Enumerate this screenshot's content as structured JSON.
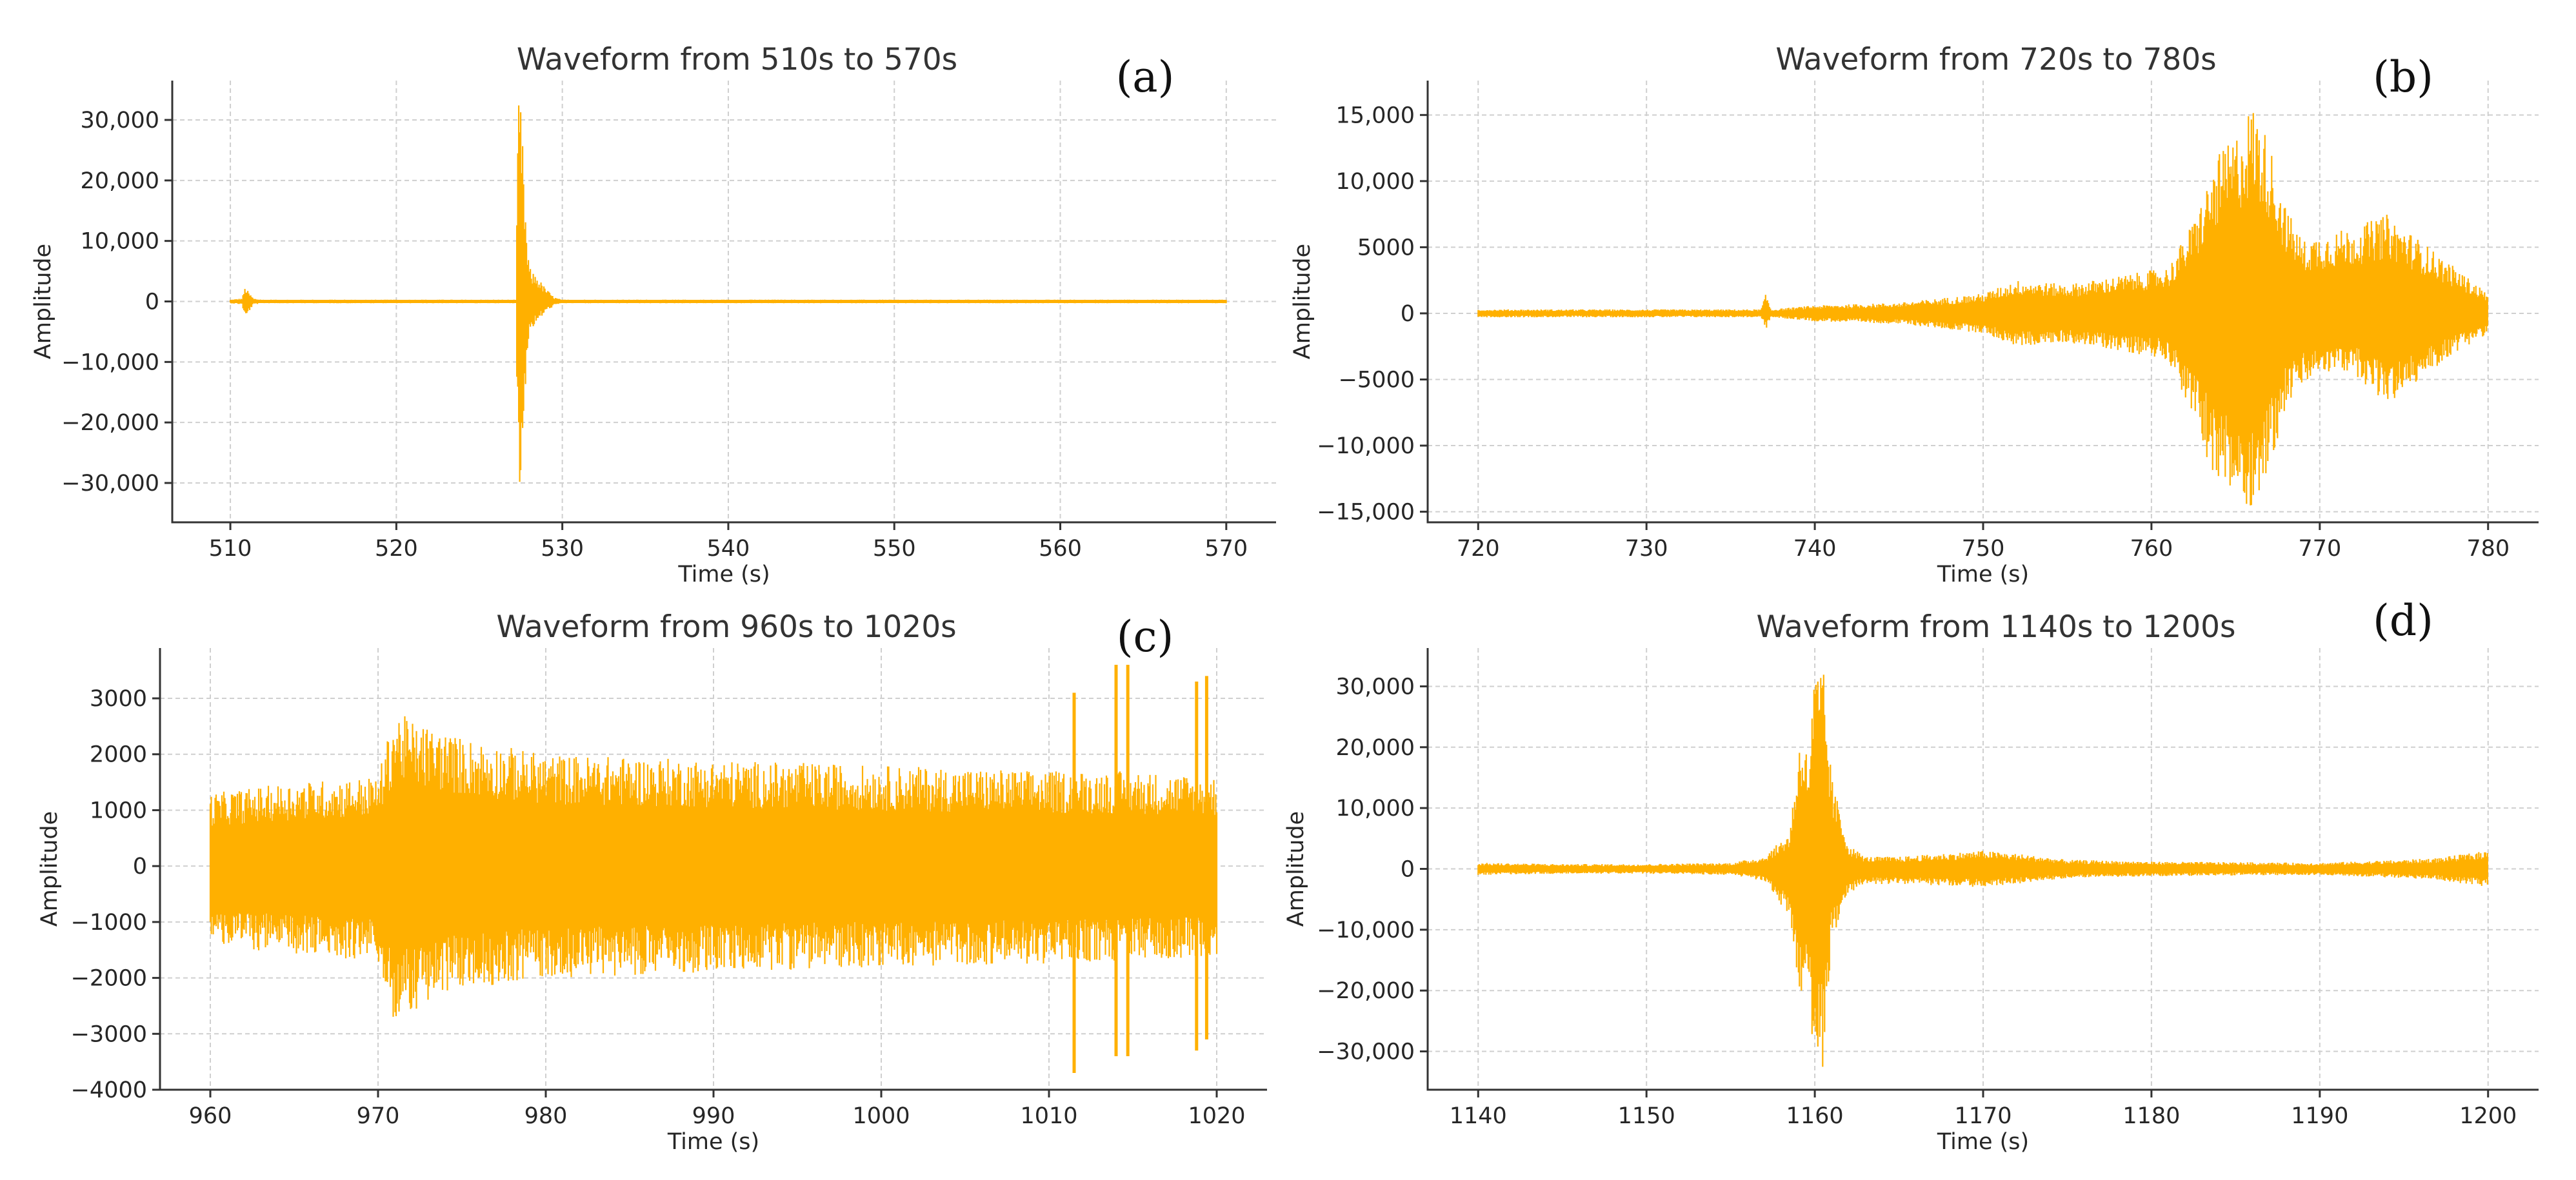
{
  "chart_data": [
    {
      "type": "line",
      "panel_label": "(a)",
      "title": "Waveform from 510s to 570s",
      "xlabel": "Time (s)",
      "ylabel": "Amplitude",
      "xlim": [
        506.5,
        573
      ],
      "ylim": [
        -36500,
        36500
      ],
      "xticks": [
        510,
        520,
        530,
        540,
        550,
        560,
        570
      ],
      "xtick_labels": [
        "510",
        "520",
        "530",
        "540",
        "550",
        "560",
        "570"
      ],
      "yticks": [
        -30000,
        -20000,
        -10000,
        0,
        10000,
        20000,
        30000
      ],
      "ytick_labels": [
        "−30,000",
        "−20,000",
        "−10,000",
        "0",
        "10,000",
        "20,000",
        "30,000"
      ],
      "color": "#FFB000",
      "envelope": {
        "t": [
          510,
          510.7,
          510.9,
          511.1,
          511.4,
          512,
          527.2,
          527.35,
          527.5,
          527.7,
          527.9,
          528.1,
          528.4,
          528.9,
          529.5,
          530,
          570
        ],
        "upper": [
          300,
          500,
          2500,
          1500,
          500,
          300,
          300,
          33000,
          33000,
          20000,
          8000,
          5000,
          4500,
          2500,
          700,
          300,
          300
        ],
        "lower": [
          -300,
          -500,
          -3000,
          -1800,
          -500,
          -300,
          -300,
          -33000,
          -33000,
          -18000,
          -8000,
          -4500,
          -4000,
          -2000,
          -700,
          -300,
          -300
        ]
      }
    },
    {
      "type": "line",
      "panel_label": "(b)",
      "title": "Waveform from 720s to 780s",
      "xlabel": "Time (s)",
      "ylabel": "Amplitude",
      "xlim": [
        717,
        783
      ],
      "ylim": [
        -15800,
        17600
      ],
      "xticks": [
        720,
        730,
        740,
        750,
        760,
        770,
        780
      ],
      "xtick_labels": [
        "720",
        "730",
        "740",
        "750",
        "760",
        "770",
        "780"
      ],
      "yticks": [
        -15000,
        -10000,
        -5000,
        0,
        5000,
        10000,
        15000
      ],
      "ytick_labels": [
        "−15,000",
        "−10,000",
        "−5000",
        "0",
        "5000",
        "10,000",
        "15,000"
      ],
      "color": "#FFB000",
      "envelope": {
        "t": [
          720,
          730,
          736.8,
          737.1,
          737.4,
          740,
          745,
          750,
          752,
          755,
          758,
          761,
          762.5,
          764,
          765,
          766,
          767,
          768,
          769,
          770,
          772,
          774,
          776,
          778,
          780
        ],
        "upper": [
          300,
          300,
          300,
          1500,
          300,
          600,
          800,
          1500,
          2500,
          2200,
          2800,
          3500,
          7000,
          12000,
          13500,
          16000,
          13000,
          8000,
          5500,
          6000,
          6500,
          7500,
          5500,
          3500,
          1500
        ],
        "lower": [
          -300,
          -300,
          -300,
          -1200,
          -300,
          -600,
          -800,
          -1500,
          -2500,
          -2200,
          -2800,
          -3500,
          -8000,
          -13500,
          -14000,
          -14800,
          -12000,
          -7000,
          -5500,
          -4500,
          -4500,
          -7000,
          -5000,
          -3000,
          -1500
        ]
      }
    },
    {
      "type": "line",
      "panel_label": "(c)",
      "title": "Waveform from 960s to 1020s",
      "xlabel": "Time (s)",
      "ylabel": "Amplitude",
      "xlim": [
        957,
        1023
      ],
      "ylim": [
        -4000,
        3900
      ],
      "xticks": [
        960,
        970,
        980,
        990,
        1000,
        1010,
        1020
      ],
      "xtick_labels": [
        "960",
        "970",
        "980",
        "990",
        "1000",
        "1010",
        "1020"
      ],
      "yticks": [
        -4000,
        -3000,
        -2000,
        -1000,
        0,
        1000,
        2000,
        3000
      ],
      "ytick_labels": [
        "−4000",
        "−3000",
        "−2000",
        "−1000",
        "0",
        "1000",
        "2000",
        "3000"
      ],
      "color": "#FFB000",
      "envelope": {
        "t": [
          960,
          965,
          970,
          971,
          972,
          975,
          980,
          990,
          1000,
          1010,
          1015,
          1020
        ],
        "upper": [
          1300,
          1500,
          1600,
          2800,
          2600,
          2300,
          2000,
          1900,
          1800,
          1700,
          1700,
          1600
        ],
        "lower": [
          -1400,
          -1600,
          -1700,
          -2900,
          -2600,
          -2200,
          -2000,
          -1900,
          -1800,
          -1750,
          -1700,
          -1600
        ]
      },
      "spikes": [
        {
          "t": 1011.5,
          "min": -3700,
          "max": 3100
        },
        {
          "t": 1014,
          "min": -3400,
          "max": 3600
        },
        {
          "t": 1014.7,
          "min": -3400,
          "max": 3600
        },
        {
          "t": 1018.8,
          "min": -3300,
          "max": 3300
        },
        {
          "t": 1019.4,
          "min": -3100,
          "max": 3400
        }
      ]
    },
    {
      "type": "line",
      "panel_label": "(d)",
      "title": "Waveform from 1140s to 1200s",
      "xlabel": "Time (s)",
      "ylabel": "Amplitude",
      "xlim": [
        1137,
        1203
      ],
      "ylim": [
        -36300,
        36300
      ],
      "xticks": [
        1140,
        1150,
        1160,
        1170,
        1180,
        1190,
        1200
      ],
      "xtick_labels": [
        "1140",
        "1150",
        "1160",
        "1170",
        "1180",
        "1190",
        "1200"
      ],
      "yticks": [
        -30000,
        -20000,
        -10000,
        0,
        10000,
        20000,
        30000
      ],
      "ytick_labels": [
        "−30,000",
        "−20,000",
        "−10,000",
        "0",
        "10,000",
        "20,000",
        "30,000"
      ],
      "color": "#FFB000",
      "envelope": {
        "t": [
          1140,
          1145,
          1150,
          1155,
          1157,
          1158.5,
          1159.2,
          1159.6,
          1160,
          1160.5,
          1161,
          1162,
          1163,
          1165,
          1170,
          1172,
          1175,
          1180,
          1190,
          1195,
          1197,
          1200
        ],
        "upper": [
          1000,
          800,
          800,
          1000,
          2000,
          6000,
          24000,
          18000,
          33000,
          33000,
          15000,
          4000,
          2000,
          2000,
          3000,
          2500,
          1500,
          1200,
          1000,
          1500,
          1800,
          3000
        ],
        "lower": [
          -1000,
          -800,
          -800,
          -1000,
          -2000,
          -8000,
          -24000,
          -20000,
          -33000,
          -33000,
          -12000,
          -4000,
          -2500,
          -2500,
          -3000,
          -2500,
          -1500,
          -1200,
          -1000,
          -1500,
          -1800,
          -3000
        ]
      }
    }
  ]
}
